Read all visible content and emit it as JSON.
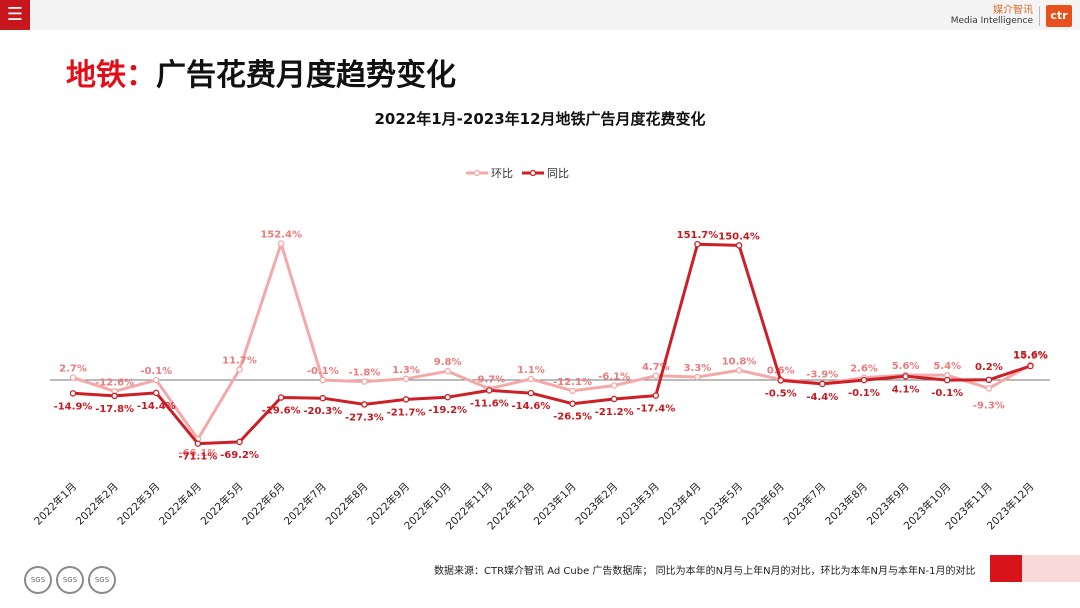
{
  "header": {
    "menu_icon": "hamburger-menu-icon",
    "brand_cn": "媒介智讯",
    "brand_en": "Media Intelligence",
    "brand_logo": "ctr"
  },
  "page_title": {
    "highlight": "地铁：",
    "rest": "广告花费月度趋势变化"
  },
  "colors": {
    "accent": "#d8131c",
    "mom": "#f4a9a9",
    "yoy": "#cc1f26"
  },
  "chart_data": {
    "type": "line",
    "title": "2022年1月-2023年12月地铁广告月度花费变化",
    "categories": [
      "2022年1月",
      "2022年2月",
      "2022年3月",
      "2022年4月",
      "2022年5月",
      "2022年6月",
      "2022年7月",
      "2022年8月",
      "2022年9月",
      "2022年10月",
      "2022年11月",
      "2022年12月",
      "2023年1月",
      "2023年2月",
      "2023年3月",
      "2023年4月",
      "2023年5月",
      "2023年6月",
      "2023年7月",
      "2023年8月",
      "2023年9月",
      "2023年10月",
      "2023年11月",
      "2023年12月"
    ],
    "series": [
      {
        "name": "环比",
        "color": "#f4a9a9",
        "values": [
          2.7,
          -12.6,
          -0.1,
          -66.1,
          11.7,
          152.4,
          -0.1,
          -1.8,
          1.3,
          9.8,
          -9.7,
          1.1,
          -12.1,
          -6.1,
          4.7,
          3.3,
          10.8,
          0.6,
          -3.9,
          2.6,
          5.6,
          5.4,
          -9.3,
          16.9
        ],
        "labels": [
          "2.7%",
          "-12.6%",
          "-0.1%",
          "-66.1%",
          "11.7%",
          "152.4%",
          "-0.1%",
          "-1.8%",
          "1.3%",
          "9.8%",
          "-9.7%",
          "1.1%",
          "-12.1%",
          "-6.1%",
          "4.7%",
          "3.3%",
          "10.8%",
          "0.6%",
          "-3.9%",
          "2.6%",
          "5.6%",
          "5.4%",
          "-9.3%",
          "16.9%"
        ]
      },
      {
        "name": "同比",
        "color": "#cc1f26",
        "values": [
          -14.9,
          -17.8,
          -14.4,
          -71.1,
          -69.2,
          -19.6,
          -20.3,
          -27.3,
          -21.7,
          -19.2,
          -11.6,
          -14.6,
          -26.5,
          -21.2,
          -17.4,
          151.7,
          150.4,
          -0.5,
          -4.4,
          -0.1,
          4.1,
          -0.1,
          0.2,
          15.6
        ],
        "labels": [
          "-14.9%",
          "-17.8%",
          "-14.4%",
          "-71.1%",
          "-69.2%",
          "-19.6%",
          "-20.3%",
          "-27.3%",
          "-21.7%",
          "-19.2%",
          "-11.6%",
          "-14.6%",
          "-26.5%",
          "-21.2%",
          "-17.4%",
          "151.7%",
          "150.4%",
          "-0.5%",
          "-4.4%",
          "-0.1%",
          "4.1%",
          "-0.1%",
          "0.2%",
          "15.6%"
        ]
      }
    ],
    "ylim": [
      -80,
      160
    ],
    "legend_position": "top-center",
    "grid": false
  },
  "footer": {
    "source": "数据来源：CTR媒介智讯 Ad Cube 广告数据库； 同比为本年的N月与上年N月的对比，环比为本年N月与本年N-1月的对比",
    "certs": [
      "SGS",
      "SGS",
      "SGS"
    ]
  }
}
